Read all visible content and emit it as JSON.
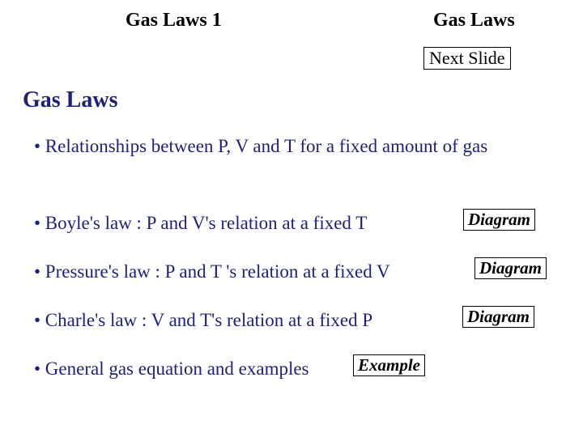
{
  "header": {
    "left_title": "Gas Laws 1",
    "right_title": "Gas Laws",
    "next_slide_label": "Next Slide"
  },
  "section": {
    "title": "Gas Laws"
  },
  "bullets": {
    "b1": "• Relationships between P, V and T for a fixed amount of gas",
    "b2": "• Boyle's law : P and V's relation at a fixed T",
    "b3": "• Pressure's law : P and T 's relation at a fixed V",
    "b4": "• Charle's law : V and T's relation at a fixed P",
    "b5": "• General gas equation and examples"
  },
  "buttons": {
    "diagram": "Diagram",
    "example": "Example"
  },
  "colors": {
    "text_primary": "#1f1f7a",
    "text_black": "#000000",
    "background": "#ffffff",
    "button_border": "#000000"
  },
  "typography": {
    "font_family": "Times New Roman",
    "header_size_pt": 24,
    "section_title_size_pt": 28,
    "bullet_size_pt": 23,
    "button_size_pt": 21
  }
}
